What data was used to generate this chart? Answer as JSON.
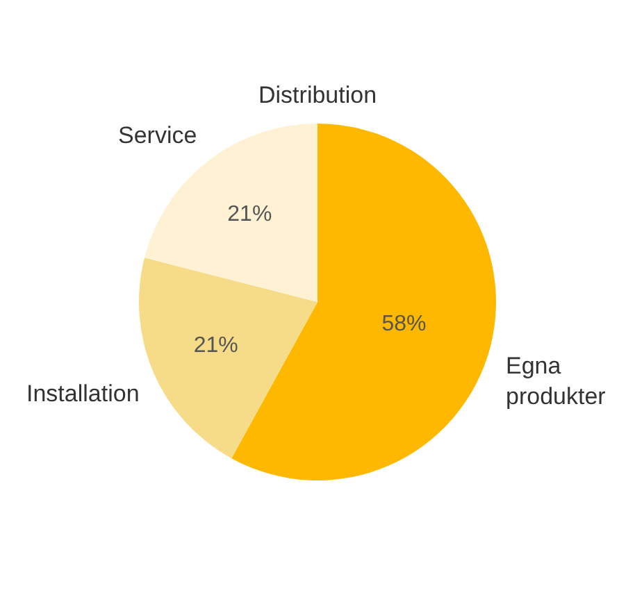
{
  "chart_data": {
    "type": "pie",
    "categories": [
      "Egna produkter",
      "Installation",
      "Service",
      "Distribution"
    ],
    "values": [
      58,
      21,
      21,
      0
    ],
    "colors": [
      "#ffb800",
      "#f6dc88",
      "#fff2d4",
      "#ffd966"
    ],
    "value_labels": [
      "58%",
      "21%",
      "21%",
      null
    ],
    "legend": false
  }
}
